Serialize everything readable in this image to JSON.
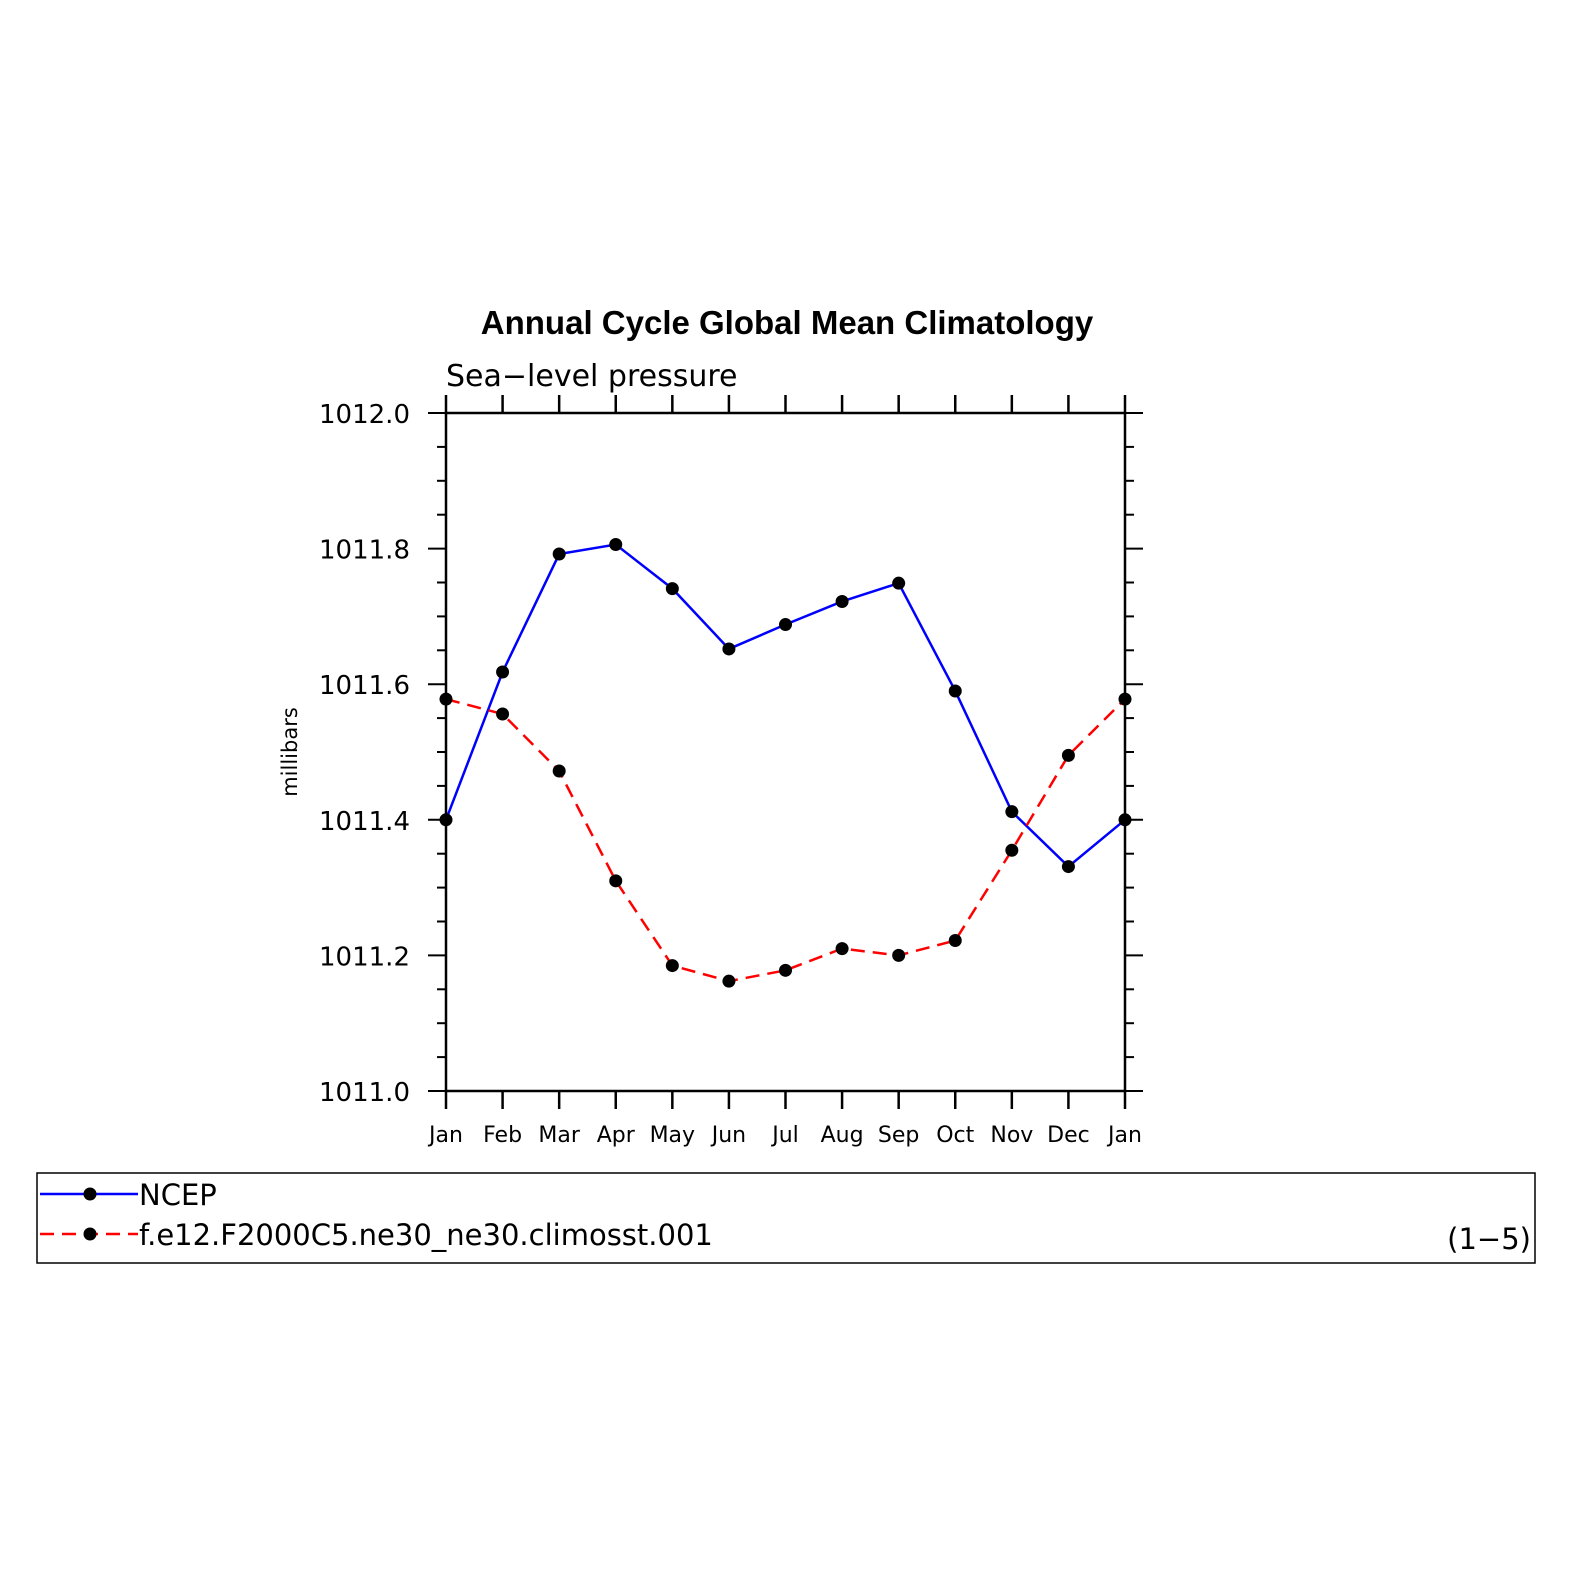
{
  "chart_data": {
    "type": "line",
    "title": "Annual Cycle Global Mean Climatology",
    "subtitle": "Sea−level pressure",
    "ylabel": "millibars",
    "xlabel": "",
    "categories": [
      "Jan",
      "Feb",
      "Mar",
      "Apr",
      "May",
      "Jun",
      "Jul",
      "Aug",
      "Sep",
      "Oct",
      "Nov",
      "Dec",
      "Jan"
    ],
    "ylim": [
      1011.0,
      1012.0
    ],
    "yticks": [
      "1011.0",
      "1011.2",
      "1011.4",
      "1011.6",
      "1011.8",
      "1012.0"
    ],
    "series": [
      {
        "name": "NCEP",
        "color": "#0000ff",
        "dashed": false,
        "values": [
          1011.4,
          1011.618,
          1011.792,
          1011.806,
          1011.741,
          1011.652,
          1011.688,
          1011.722,
          1011.749,
          1011.59,
          1011.412,
          1011.331,
          1011.4
        ]
      },
      {
        "name": "f.e12.F2000C5.ne30_ne30.climosst.001",
        "color": "#ff0000",
        "dashed": true,
        "values": [
          1011.578,
          1011.556,
          1011.472,
          1011.31,
          1011.185,
          1011.162,
          1011.178,
          1011.21,
          1011.2,
          1011.222,
          1011.355,
          1011.495,
          1011.578
        ]
      }
    ],
    "legend_note": "(1−5)",
    "legend_position": "bottom",
    "grid": false
  }
}
